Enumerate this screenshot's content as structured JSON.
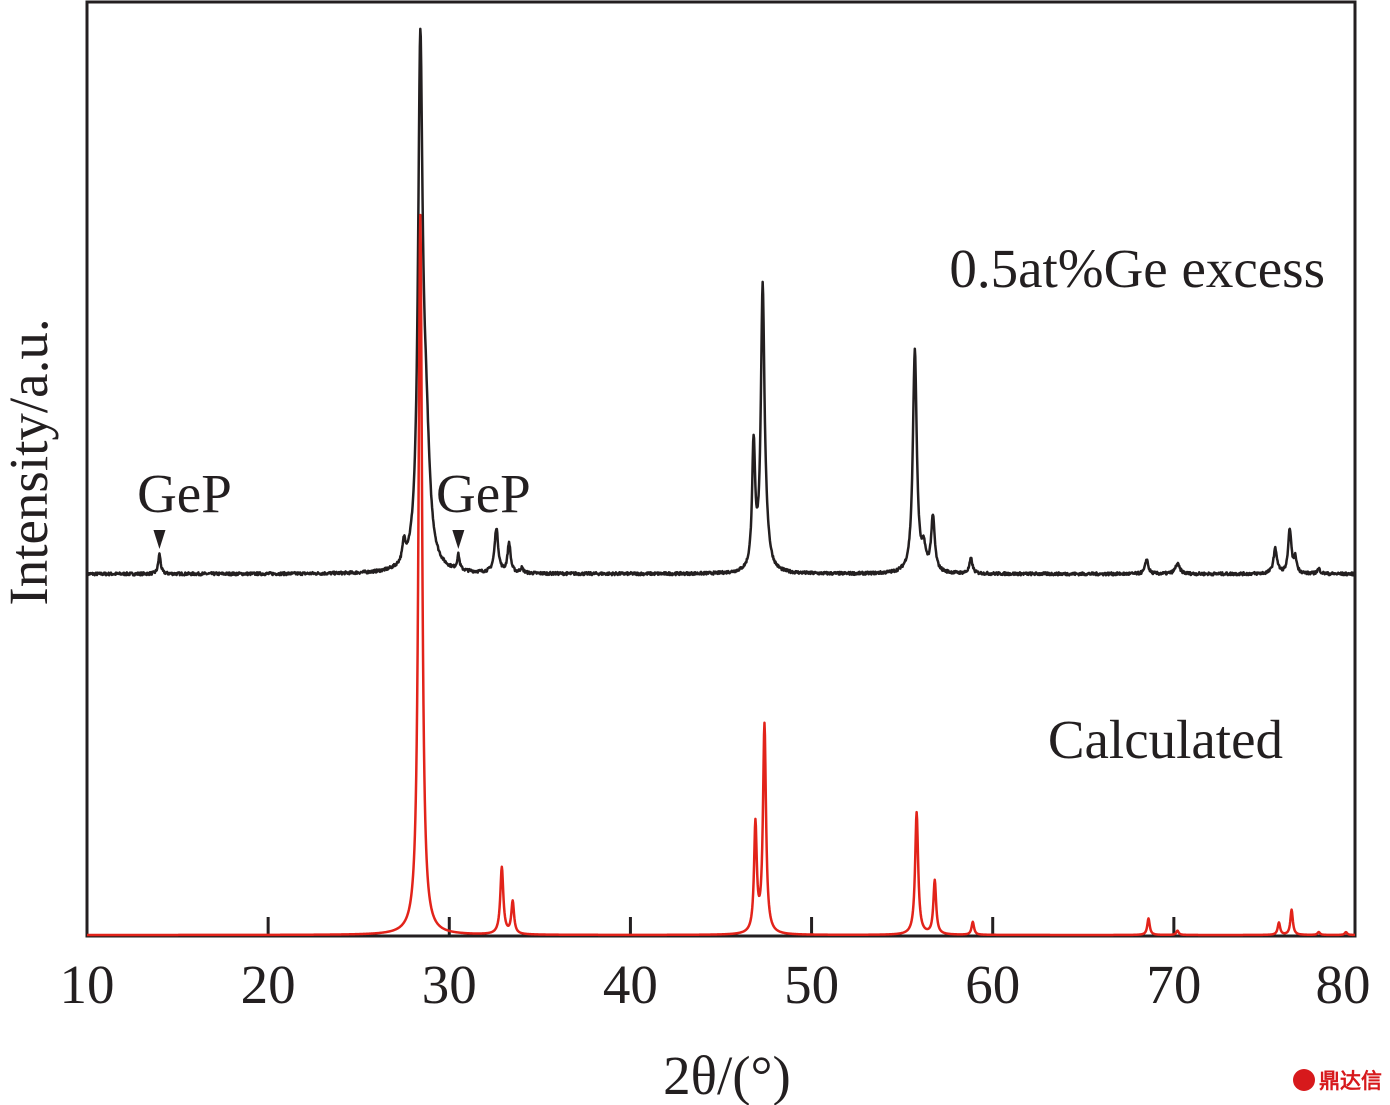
{
  "chart_data": {
    "type": "line",
    "xlabel": "2θ/(°)",
    "ylabel": "Intensity/a.u.",
    "xlim": [
      10,
      80
    ],
    "x_ticks": [
      10,
      20,
      30,
      40,
      50,
      60,
      70,
      80
    ],
    "grid": false,
    "legend": "none",
    "series": [
      {
        "name": "0.5at%Ge excess",
        "color": "#231f20",
        "baseline": 0.02,
        "peaks": [
          {
            "x": 14.0,
            "h": 0.04,
            "w": 0.08
          },
          {
            "x": 27.5,
            "h": 0.04,
            "w": 0.1
          },
          {
            "x": 28.4,
            "h": 1.0,
            "w": 0.15
          },
          {
            "x": 28.7,
            "h": 0.25,
            "w": 0.25
          },
          {
            "x": 30.5,
            "h": 0.03,
            "w": 0.08
          },
          {
            "x": 32.6,
            "h": 0.09,
            "w": 0.12
          },
          {
            "x": 33.3,
            "h": 0.06,
            "w": 0.1
          },
          {
            "x": 34.0,
            "h": 0.01,
            "w": 0.1
          },
          {
            "x": 46.8,
            "h": 0.25,
            "w": 0.1
          },
          {
            "x": 47.3,
            "h": 0.56,
            "w": 0.12
          },
          {
            "x": 47.5,
            "h": 0.04,
            "w": 0.2
          },
          {
            "x": 55.7,
            "h": 0.45,
            "w": 0.13
          },
          {
            "x": 56.2,
            "h": 0.04,
            "w": 0.12
          },
          {
            "x": 56.7,
            "h": 0.11,
            "w": 0.12
          },
          {
            "x": 58.8,
            "h": 0.03,
            "w": 0.1
          },
          {
            "x": 68.5,
            "h": 0.03,
            "w": 0.1
          },
          {
            "x": 70.2,
            "h": 0.02,
            "w": 0.15
          },
          {
            "x": 75.6,
            "h": 0.05,
            "w": 0.12
          },
          {
            "x": 76.4,
            "h": 0.09,
            "w": 0.1
          },
          {
            "x": 76.7,
            "h": 0.03,
            "w": 0.1
          },
          {
            "x": 78.0,
            "h": 0.01,
            "w": 0.1
          }
        ]
      },
      {
        "name": "Calculated",
        "color": "#e2231a",
        "baseline": 0.0,
        "peaks": [
          {
            "x": 28.4,
            "h": 1.0,
            "w": 0.12
          },
          {
            "x": 32.9,
            "h": 0.093,
            "w": 0.1
          },
          {
            "x": 33.5,
            "h": 0.045,
            "w": 0.09
          },
          {
            "x": 46.9,
            "h": 0.15,
            "w": 0.09
          },
          {
            "x": 47.4,
            "h": 0.29,
            "w": 0.1
          },
          {
            "x": 55.8,
            "h": 0.17,
            "w": 0.1
          },
          {
            "x": 56.8,
            "h": 0.075,
            "w": 0.09
          },
          {
            "x": 58.9,
            "h": 0.018,
            "w": 0.08
          },
          {
            "x": 68.6,
            "h": 0.023,
            "w": 0.08
          },
          {
            "x": 70.2,
            "h": 0.006,
            "w": 0.08
          },
          {
            "x": 75.8,
            "h": 0.017,
            "w": 0.08
          },
          {
            "x": 76.5,
            "h": 0.035,
            "w": 0.08
          },
          {
            "x": 78.0,
            "h": 0.004,
            "w": 0.08
          },
          {
            "x": 79.5,
            "h": 0.004,
            "w": 0.08
          }
        ]
      }
    ],
    "annotations": [
      {
        "text": "GeP",
        "x": 14.0,
        "marker": "down-triangle"
      },
      {
        "text": "GeP",
        "x": 30.5,
        "marker": "down-triangle"
      }
    ]
  },
  "watermark": "鼎达信"
}
